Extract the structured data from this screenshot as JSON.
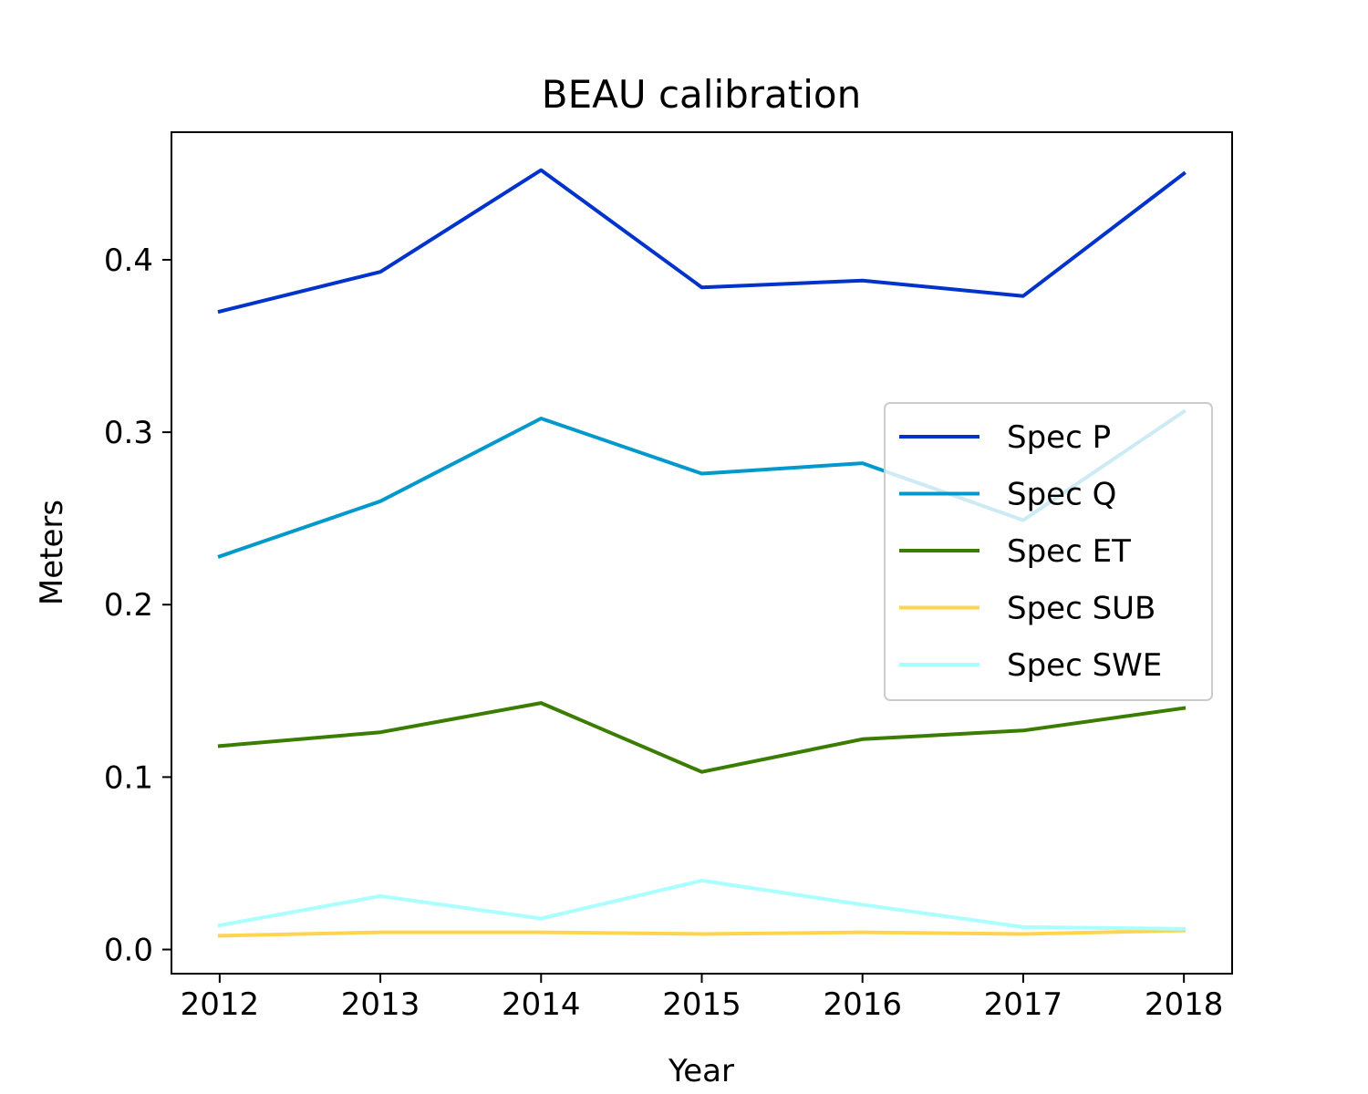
{
  "chart_data": {
    "type": "line",
    "title": "BEAU calibration",
    "xlabel": "Year",
    "ylabel": "Meters",
    "x": [
      2012,
      2013,
      2014,
      2015,
      2016,
      2017,
      2018
    ],
    "xlim": [
      2011.7,
      2018.3
    ],
    "ylim": [
      -0.014,
      0.474
    ],
    "yticks": [
      0.0,
      0.1,
      0.2,
      0.3,
      0.4
    ],
    "ytick_labels": [
      "0.0",
      "0.1",
      "0.2",
      "0.3",
      "0.4"
    ],
    "xtick_labels": [
      "2012",
      "2013",
      "2014",
      "2015",
      "2016",
      "2017",
      "2018"
    ],
    "grid": false,
    "legend_position": "center-right",
    "series": [
      {
        "name": "Spec P",
        "color": "#0033cc",
        "values": [
          0.37,
          0.393,
          0.452,
          0.384,
          0.388,
          0.379,
          0.45
        ]
      },
      {
        "name": "Spec Q",
        "color": "#0099cc",
        "values": [
          0.228,
          0.26,
          0.308,
          0.276,
          0.282,
          0.249,
          0.312
        ]
      },
      {
        "name": "Spec ET",
        "color": "#3a7d00",
        "values": [
          0.118,
          0.126,
          0.143,
          0.103,
          0.122,
          0.127,
          0.14
        ]
      },
      {
        "name": "Spec SUB",
        "color": "#ffd54f",
        "values": [
          0.008,
          0.01,
          0.01,
          0.009,
          0.01,
          0.009,
          0.011
        ]
      },
      {
        "name": "Spec SWE",
        "color": "#aaffff",
        "values": [
          0.014,
          0.031,
          0.018,
          0.04,
          0.026,
          0.013,
          0.012
        ]
      }
    ]
  }
}
